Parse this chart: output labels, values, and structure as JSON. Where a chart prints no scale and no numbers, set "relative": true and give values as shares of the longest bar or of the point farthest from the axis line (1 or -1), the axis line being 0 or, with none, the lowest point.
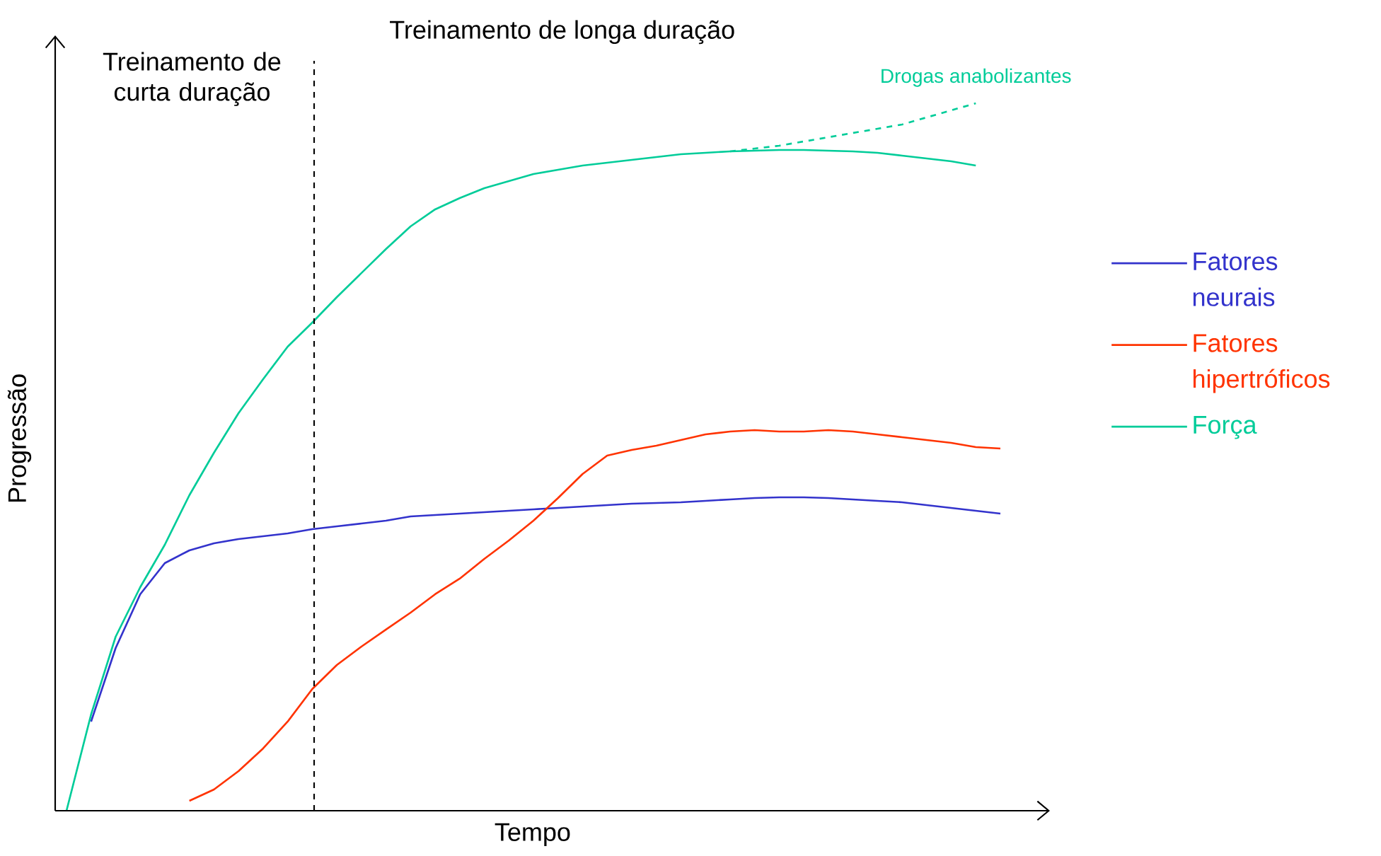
{
  "chart_data": {
    "type": "line",
    "relative": true,
    "xlabel": "Tempo",
    "ylabel": "Progressão",
    "annotations": [
      "Treinamento de curta duração",
      "Treinamento de longa duração"
    ],
    "categories": [
      null,
      null,
      null,
      null,
      null,
      null,
      null,
      null,
      null,
      null,
      null,
      null,
      null,
      null,
      null,
      null,
      null,
      null,
      null,
      null,
      null,
      null,
      null,
      null,
      null,
      null,
      null,
      null,
      null,
      null,
      null,
      null,
      null,
      null,
      null,
      null,
      null,
      null,
      null
    ],
    "legend": "right",
    "series": [
      {
        "name": "Fatores neurais",
        "color": "#3333cc",
        "line_style": "solid",
        "values": [
          null,
          0.126,
          0.23,
          0.306,
          0.35,
          0.368,
          0.378,
          0.384,
          0.388,
          0.392,
          0.398,
          0.402,
          0.406,
          0.41,
          0.416,
          0.418,
          0.42,
          0.422,
          0.424,
          0.426,
          0.428,
          0.43,
          0.432,
          0.434,
          0.435,
          0.436,
          0.438,
          0.44,
          0.442,
          0.443,
          0.443,
          0.442,
          0.44,
          0.438,
          0.436,
          0.432,
          0.428,
          0.424,
          0.42
        ]
      },
      {
        "name": "Fatores hipertróficos",
        "color": "#ff3300",
        "line_style": "solid",
        "values": [
          null,
          null,
          null,
          null,
          null,
          0.014,
          0.03,
          0.056,
          0.088,
          0.126,
          0.172,
          0.206,
          0.232,
          0.256,
          0.28,
          0.306,
          0.328,
          0.356,
          0.382,
          0.41,
          0.442,
          0.476,
          0.502,
          0.51,
          0.516,
          0.524,
          0.532,
          0.536,
          0.538,
          0.536,
          0.536,
          0.538,
          0.536,
          0.532,
          0.528,
          0.524,
          0.52,
          0.514,
          0.512
        ]
      },
      {
        "name": "Força",
        "color": "#00cc99",
        "line_style": "solid",
        "values": [
          0,
          0.136,
          0.246,
          0.316,
          0.376,
          0.446,
          0.506,
          0.562,
          0.61,
          0.656,
          0.69,
          0.726,
          0.76,
          0.794,
          0.826,
          0.85,
          0.866,
          0.88,
          0.89,
          0.9,
          0.906,
          0.912,
          0.916,
          0.92,
          0.924,
          0.928,
          0.93,
          0.932,
          0.933,
          0.934,
          0.934,
          0.933,
          0.932,
          0.93,
          0.926,
          0.922,
          0.918,
          0.912,
          null
        ]
      },
      {
        "name": "Drogas anabolizantes",
        "color": "#00cc99",
        "line_style": "dashed",
        "values": [
          null,
          null,
          null,
          null,
          null,
          null,
          null,
          null,
          null,
          null,
          null,
          null,
          null,
          null,
          null,
          null,
          null,
          null,
          null,
          null,
          null,
          null,
          null,
          null,
          null,
          null,
          null,
          0.932,
          0.936,
          0.94,
          0.946,
          0.952,
          0.958,
          0.964,
          0.97,
          0.98,
          0.99,
          1.0,
          null
        ]
      }
    ]
  }
}
